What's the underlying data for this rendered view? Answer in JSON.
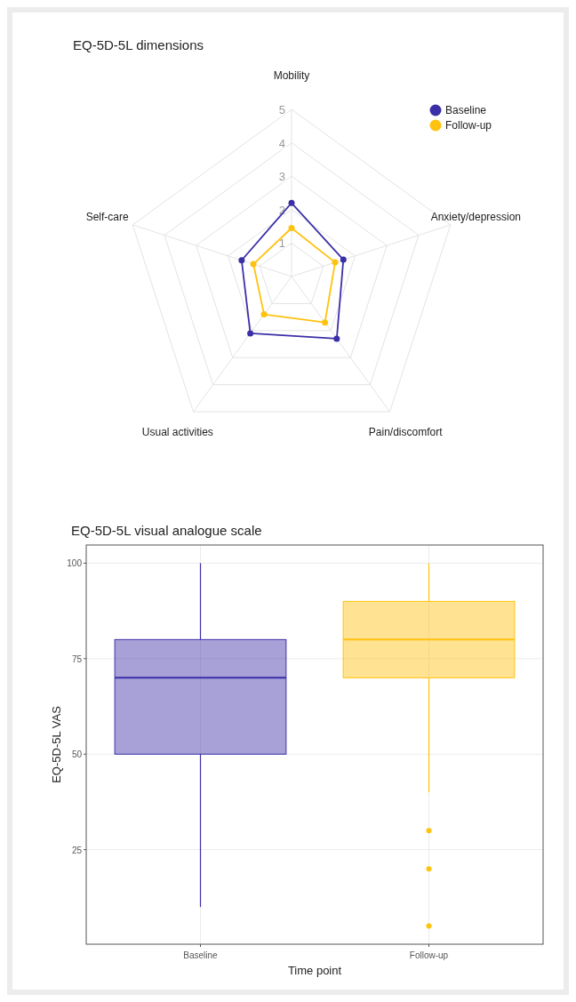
{
  "chart_data": [
    {
      "type": "radar",
      "title": "EQ-5D-5L dimensions",
      "categories": [
        "Mobility",
        "Anxiety/depression",
        "Pain/discomfort",
        "Usual activities",
        "Self-care"
      ],
      "series": [
        {
          "name": "Baseline",
          "color": "#3b2fa8",
          "values": [
            2.2,
            1.63,
            2.3,
            2.1,
            1.57
          ]
        },
        {
          "name": "Follow-up",
          "color": "#ffc20e",
          "values": [
            1.45,
            1.37,
            1.7,
            1.4,
            1.2
          ]
        }
      ],
      "ylim": [
        0,
        5
      ],
      "yticks": [
        1,
        2,
        3,
        4,
        5
      ],
      "grid": true,
      "legend": "top right",
      "marker": "circle"
    },
    {
      "type": "box",
      "title": "EQ-5D-5L visual analogue scale",
      "xlabel": "Time point",
      "ylabel": "EQ-5D-5L VAS",
      "categories": [
        "Baseline",
        "Follow-up"
      ],
      "colors": [
        "#3b2fa8",
        "#ffc20e"
      ],
      "boxes": [
        {
          "low": 10,
          "q1": 50,
          "median": 70,
          "q3": 80,
          "high": 100
        },
        {
          "low": 40,
          "q1": 70,
          "median": 80,
          "q3": 90,
          "high": 100,
          "outliers": [
            30,
            20,
            5
          ]
        }
      ],
      "ylim": [
        0.25,
        104.75
      ],
      "yticks": [
        25,
        50,
        75,
        100
      ],
      "grid": true
    }
  ]
}
